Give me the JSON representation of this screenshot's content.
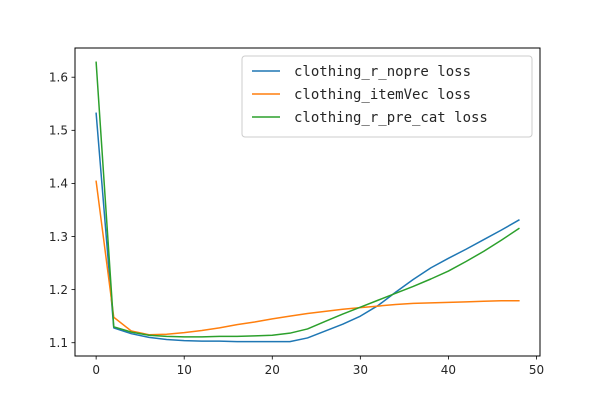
{
  "chart_data": {
    "type": "line",
    "title": "",
    "xlabel": "",
    "ylabel": "",
    "xlim": [
      -2.4,
      50.4
    ],
    "ylim": [
      1.075,
      1.655
    ],
    "xticks": [
      0,
      10,
      20,
      30,
      40,
      50
    ],
    "yticks": [
      1.1,
      1.2,
      1.3,
      1.4,
      1.5,
      1.6
    ],
    "grid": false,
    "legend_position": "top-right",
    "series": [
      {
        "name": "clothing_r_nopre loss",
        "color": "#1f77b4",
        "x": [
          0,
          2,
          4,
          6,
          8,
          10,
          12,
          14,
          16,
          18,
          20,
          22,
          24,
          26,
          28,
          30,
          32,
          34,
          36,
          38,
          40,
          42,
          44,
          46,
          48
        ],
        "y": [
          1.532,
          1.128,
          1.117,
          1.11,
          1.106,
          1.104,
          1.103,
          1.103,
          1.102,
          1.102,
          1.102,
          1.102,
          1.109,
          1.122,
          1.135,
          1.15,
          1.17,
          1.195,
          1.219,
          1.241,
          1.259,
          1.276,
          1.294,
          1.312,
          1.331
        ]
      },
      {
        "name": "clothing_itemVec loss",
        "color": "#ff7f0e",
        "x": [
          0,
          2,
          4,
          6,
          8,
          10,
          12,
          14,
          16,
          18,
          20,
          22,
          24,
          26,
          28,
          30,
          32,
          34,
          36,
          38,
          40,
          42,
          44,
          46,
          48
        ],
        "y": [
          1.404,
          1.148,
          1.122,
          1.115,
          1.116,
          1.119,
          1.123,
          1.128,
          1.134,
          1.139,
          1.145,
          1.15,
          1.155,
          1.159,
          1.163,
          1.166,
          1.169,
          1.172,
          1.174,
          1.175,
          1.176,
          1.177,
          1.178,
          1.179,
          1.179
        ]
      },
      {
        "name": "clothing_r_pre_cat loss",
        "color": "#2ca02c",
        "x": [
          0,
          2,
          4,
          6,
          8,
          10,
          12,
          14,
          16,
          18,
          20,
          22,
          24,
          26,
          28,
          30,
          32,
          34,
          36,
          38,
          40,
          42,
          44,
          46,
          48
        ],
        "y": [
          1.628,
          1.13,
          1.12,
          1.114,
          1.112,
          1.111,
          1.111,
          1.112,
          1.112,
          1.113,
          1.114,
          1.118,
          1.126,
          1.14,
          1.154,
          1.167,
          1.18,
          1.193,
          1.206,
          1.22,
          1.235,
          1.253,
          1.272,
          1.293,
          1.315
        ]
      }
    ]
  }
}
